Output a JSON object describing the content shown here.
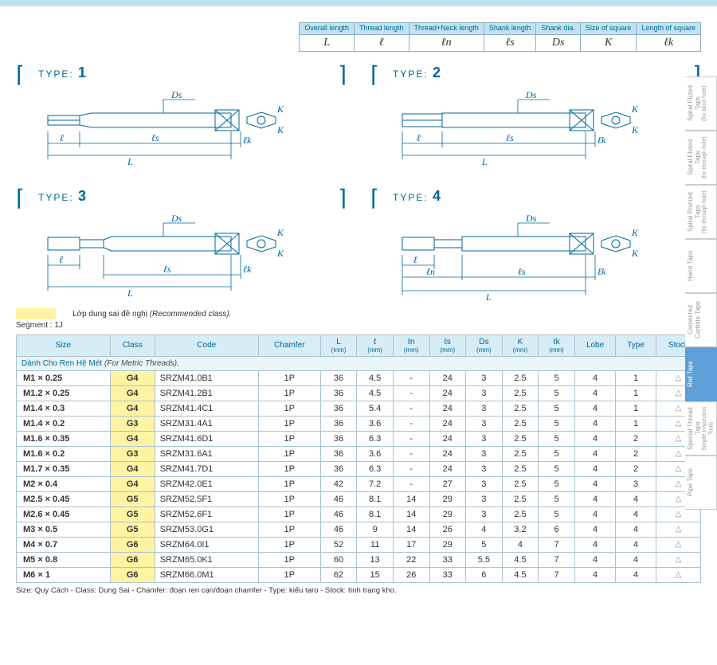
{
  "legend": {
    "headers": [
      "Overall length",
      "Thread length",
      "Thread+Neck length",
      "Shank length",
      "Shank dia.",
      "Size of square",
      "Length of square"
    ],
    "symbols": [
      "L",
      "ℓ",
      "ℓn",
      "ℓs",
      "Ds",
      "K",
      "ℓk"
    ]
  },
  "types": {
    "t1": "1",
    "t2": "2",
    "t3": "3",
    "t4": "4",
    "prefix": "TYPE:"
  },
  "diagram_labels": {
    "Ds": "Ds",
    "K": "K",
    "L": "L",
    "l": "ℓ",
    "ls": "ℓs",
    "lk": "ℓk",
    "ln": "ℓn"
  },
  "recnote": {
    "text": "Lớp dung sai đề nghị",
    "paren": "(Recommended class)."
  },
  "segment": "Segment : 1J",
  "columns": [
    "Size",
    "Class",
    "Code",
    "Chamfer",
    "L",
    "ℓ",
    "ℓn",
    "ℓs",
    "Ds",
    "K",
    "ℓk",
    "Lobe",
    "Type",
    "Stock"
  ],
  "col_sub": [
    "",
    "",
    "",
    "",
    "(mm)",
    "(mm)",
    "(mm)",
    "(mm)",
    "(mm)",
    "(mm)",
    "(mm)",
    "",
    "",
    ""
  ],
  "section_label_vn": "Dành Cho Ren Hệ Mét",
  "section_label_en": "(For Metric Threads).",
  "rows": [
    {
      "size": "M1 × 0.25",
      "cls": "G4",
      "code": "SRZM41.0B1",
      "chamfer": "1P",
      "L": "36",
      "l": "4.5",
      "ln": "-",
      "ls": "24",
      "Ds": "3",
      "K": "2.5",
      "lk": "5",
      "lobe": "4",
      "type": "1",
      "stock": "△"
    },
    {
      "size": "M1.2 × 0.25",
      "cls": "G4",
      "code": "SRZM41.2B1",
      "chamfer": "1P",
      "L": "36",
      "l": "4.5",
      "ln": "-",
      "ls": "24",
      "Ds": "3",
      "K": "2.5",
      "lk": "5",
      "lobe": "4",
      "type": "1",
      "stock": "△"
    },
    {
      "size": "M1.4 × 0.3",
      "cls": "G4",
      "code": "SRZM41.4C1",
      "chamfer": "1P",
      "L": "36",
      "l": "5.4",
      "ln": "-",
      "ls": "24",
      "Ds": "3",
      "K": "2.5",
      "lk": "5",
      "lobe": "4",
      "type": "1",
      "stock": "△"
    },
    {
      "size": "M1.4 × 0.2",
      "cls": "G3",
      "code": "SRZM31.4A1",
      "chamfer": "1P",
      "L": "36",
      "l": "3.6",
      "ln": "-",
      "ls": "24",
      "Ds": "3",
      "K": "2.5",
      "lk": "5",
      "lobe": "4",
      "type": "1",
      "stock": "△"
    },
    {
      "size": "M1.6 × 0.35",
      "cls": "G4",
      "code": "SRZM41.6D1",
      "chamfer": "1P",
      "L": "36",
      "l": "6.3",
      "ln": "-",
      "ls": "24",
      "Ds": "3",
      "K": "2.5",
      "lk": "5",
      "lobe": "4",
      "type": "2",
      "stock": "△"
    },
    {
      "size": "M1.6 × 0.2",
      "cls": "G3",
      "code": "SRZM31.6A1",
      "chamfer": "1P",
      "L": "36",
      "l": "3.6",
      "ln": "-",
      "ls": "24",
      "Ds": "3",
      "K": "2.5",
      "lk": "5",
      "lobe": "4",
      "type": "2",
      "stock": "△"
    },
    {
      "size": "M1.7 × 0.35",
      "cls": "G4",
      "code": "SRZM41.7D1",
      "chamfer": "1P",
      "L": "36",
      "l": "6.3",
      "ln": "-",
      "ls": "24",
      "Ds": "3",
      "K": "2.5",
      "lk": "5",
      "lobe": "4",
      "type": "2",
      "stock": "△"
    },
    {
      "size": "M2 × 0.4",
      "cls": "G4",
      "code": "SRZM42.0E1",
      "chamfer": "1P",
      "L": "42",
      "l": "7.2",
      "ln": "-",
      "ls": "27",
      "Ds": "3",
      "K": "2.5",
      "lk": "5",
      "lobe": "4",
      "type": "3",
      "stock": "△"
    },
    {
      "size": "M2.5 × 0.45",
      "cls": "G5",
      "code": "SRZM52.5F1",
      "chamfer": "1P",
      "L": "46",
      "l": "8.1",
      "ln": "14",
      "ls": "29",
      "Ds": "3",
      "K": "2.5",
      "lk": "5",
      "lobe": "4",
      "type": "4",
      "stock": "△"
    },
    {
      "size": "M2.6 × 0.45",
      "cls": "G5",
      "code": "SRZM52.6F1",
      "chamfer": "1P",
      "L": "46",
      "l": "8.1",
      "ln": "14",
      "ls": "29",
      "Ds": "3",
      "K": "2.5",
      "lk": "5",
      "lobe": "4",
      "type": "4",
      "stock": "△"
    },
    {
      "size": "M3 × 0.5",
      "cls": "G5",
      "code": "SRZM53.0G1",
      "chamfer": "1P",
      "L": "46",
      "l": "9",
      "ln": "14",
      "ls": "26",
      "Ds": "4",
      "K": "3.2",
      "lk": "6",
      "lobe": "4",
      "type": "4",
      "stock": "△"
    },
    {
      "size": "M4 × 0.7",
      "cls": "G6",
      "code": "SRZM64.0I1",
      "chamfer": "1P",
      "L": "52",
      "l": "11",
      "ln": "17",
      "ls": "29",
      "Ds": "5",
      "K": "4",
      "lk": "7",
      "lobe": "4",
      "type": "4",
      "stock": "△"
    },
    {
      "size": "M5 × 0.8",
      "cls": "G6",
      "code": "SRZM65.0K1",
      "chamfer": "1P",
      "L": "60",
      "l": "13",
      "ln": "22",
      "ls": "33",
      "Ds": "5.5",
      "K": "4.5",
      "lk": "7",
      "lobe": "4",
      "type": "4",
      "stock": "△"
    },
    {
      "size": "M6 × 1",
      "cls": "G6",
      "code": "SRZM66.0M1",
      "chamfer": "1P",
      "L": "62",
      "l": "15",
      "ln": "26",
      "ls": "33",
      "Ds": "6",
      "K": "4.5",
      "lk": "7",
      "lobe": "4",
      "type": "4",
      "stock": "△"
    }
  ],
  "footnote": "Size: Quy Cách - Class: Dung Sai - Chamfer: đoạn ren cạn/đoạn chamfer - Type: kiểu taro - Stock: tình trạng kho.",
  "sidetabs": [
    {
      "label": "Spiral Fluted Taps",
      "sub": "(for blind hole)",
      "active": false
    },
    {
      "label": "Spiral Fluted Taps",
      "sub": "(for through hole)",
      "active": false
    },
    {
      "label": "Spiral Pointed Taps",
      "sub": "(for through hole)",
      "active": false
    },
    {
      "label": "Hand Taps",
      "sub": "",
      "active": false
    },
    {
      "label": "Cemented Carbide Taps",
      "sub": "",
      "active": false
    },
    {
      "label": "Roll Taps",
      "sub": "",
      "active": true
    },
    {
      "label": "Special Thread Taps",
      "sub": "Simple Inspection Tools",
      "active": false
    },
    {
      "label": "Pipe Taps",
      "sub": "",
      "active": false
    }
  ],
  "colors": {
    "header_bg": "#d6edf6",
    "header_border": "#aac3d0",
    "accent": "#006699",
    "highlight": "#fff4a3",
    "section_bg": "#eaf5fa",
    "topbar": "#bfe3f0",
    "tab_active": "#5d9fd6"
  }
}
